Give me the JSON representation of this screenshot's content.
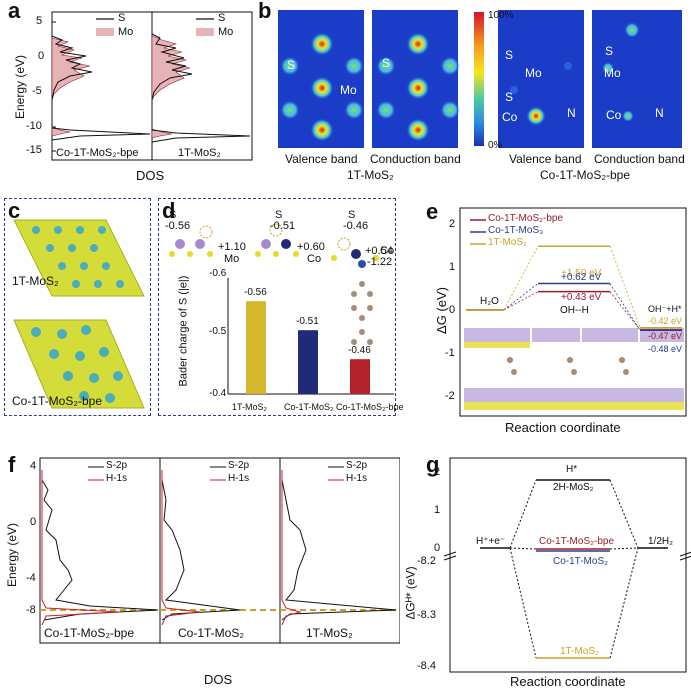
{
  "panels": {
    "a": {
      "letter": "a",
      "ylabel": "Energy (eV)",
      "xlabel": "DOS",
      "yticks": [
        "5",
        "0",
        "-5",
        "-10",
        "-15"
      ],
      "legend": {
        "s": "S",
        "mo": "Mo"
      },
      "sub_left": "Co-1T-MoS₂-bpe",
      "sub_right": "1T-MoS₂"
    },
    "b": {
      "letter": "b",
      "scale_top": "100%",
      "scale_bottom": "0%",
      "caption_left": "Valence band",
      "caption_mid": "Conduction band",
      "caption_right1": "Valence band",
      "caption_right2": "Conduction band",
      "group_left": "1T-MoS₂",
      "group_right": "Co-1T-MoS₂-bpe",
      "atoms": {
        "s": "S",
        "mo": "Mo",
        "co": "Co",
        "n": "N"
      }
    },
    "c": {
      "letter": "c",
      "label_top": "1T-MoS₂",
      "label_bottom": "Co-1T-MoS₂-bpe"
    },
    "d": {
      "letter": "d",
      "ylabel": "Bader charge of S (|e|)",
      "yticks": [
        "-0.6",
        "-0.5",
        "-0.4"
      ],
      "struct_labels": {
        "s1": "S",
        "v1": "-0.56",
        "mo1": "+1.10",
        "mol": "Mo",
        "s2": "S",
        "v2": "-0.51",
        "co2": "+0.60",
        "col": "Co",
        "s3": "S",
        "v3": "-0.46",
        "co3": "+0.54",
        "col3": "Co",
        "n3": "-1.22",
        "nl": "N"
      }
    },
    "e": {
      "letter": "e",
      "ylabel": "ΔG (eV)",
      "xlabel": "Reaction coordinate",
      "yticks": [
        "2",
        "1",
        "0",
        "-1",
        "-2"
      ],
      "legend": [
        "Co-1T-MoS₂-bpe",
        "Co-1T-MoS₃",
        "1T-MoS₂"
      ],
      "labels": {
        "h2o": "H₂O",
        "ohh": "OH--H",
        "ohplus": "OH⁻+H*",
        "e150": "+1.50 eV",
        "e062": "+0.62 eV",
        "e043": "+0.43 eV",
        "em042": "-0.42 eV",
        "em047": "-0.47 eV",
        "em048": "-0.48 eV"
      }
    },
    "f": {
      "letter": "f",
      "ylabel": "Energy (eV)",
      "xlabel": "DOS",
      "yticks": [
        "4",
        "0",
        "-4",
        "-8"
      ],
      "legend": {
        "s": "S-2p",
        "h": "H-1s"
      },
      "sub1": "Co-1T-MoS₂-bpe",
      "sub2": "Co-1T-MoS₂",
      "sub3": "1T-MoS₂"
    },
    "g": {
      "letter": "g",
      "ylabel": "ΔGᴴ* (eV)",
      "xlabel": "Reaction coordinate",
      "yticks_top": [
        "2",
        "1",
        "0"
      ],
      "yticks_bottom": [
        "-8.2",
        "-8.3",
        "-8.4"
      ],
      "labels": {
        "hstar": "H*",
        "twoh": "2H-MoS₂",
        "coBpe": "Co-1T-MoS₂-bpe",
        "co": "Co-1T-MoS₂",
        "hplus": "H⁺+e⁻",
        "halfh2": "1/2H₂",
        "onet": "1T-MoS₂"
      }
    }
  },
  "chart_data": [
    {
      "panel": "d",
      "type": "bar",
      "categories": [
        "1T-MoS₂",
        "Co-1T-MoS₂",
        "Co-1T-MoS₂-bpe"
      ],
      "values": [
        -0.56,
        -0.51,
        -0.46
      ],
      "value_labels": [
        "-0.56",
        "-0.51",
        "-0.46"
      ],
      "ylabel": "Bader charge of S (|e|)",
      "ylim": [
        -0.6,
        -0.4
      ],
      "colors": [
        "#d4b72c",
        "#1f2a7a",
        "#b3232b"
      ]
    },
    {
      "panel": "e",
      "type": "line",
      "xlabel": "Reaction coordinate",
      "ylabel": "ΔG (eV)",
      "ylim": [
        -2.5,
        2.4
      ],
      "x": [
        "H₂O",
        "OH--H",
        "OH⁻+H*"
      ],
      "series": [
        {
          "name": "Co-1T-MoS₂-bpe",
          "values": [
            0,
            0.43,
            -0.47
          ],
          "color": "#9b1b2b"
        },
        {
          "name": "Co-1T-MoS₃",
          "values": [
            0,
            0.62,
            -0.48
          ],
          "color": "#2a3a8f"
        },
        {
          "name": "1T-MoS₂",
          "values": [
            0,
            1.5,
            -0.42
          ],
          "color": "#c9a42a"
        }
      ]
    },
    {
      "panel": "g",
      "type": "line",
      "xlabel": "Reaction coordinate",
      "x": [
        "H⁺+e⁻",
        "H*",
        "1/2H₂"
      ],
      "series": [
        {
          "name": "2H-MoS₂",
          "values": [
            0,
            1.85,
            0
          ]
        },
        {
          "name": "Co-1T-MoS₂-bpe",
          "values": [
            0,
            -0.02,
            0
          ]
        },
        {
          "name": "Co-1T-MoS₂",
          "values": [
            0,
            -0.05,
            0
          ]
        },
        {
          "name": "1T-MoS₂",
          "values": [
            0,
            -8.38,
            0
          ]
        }
      ]
    }
  ]
}
